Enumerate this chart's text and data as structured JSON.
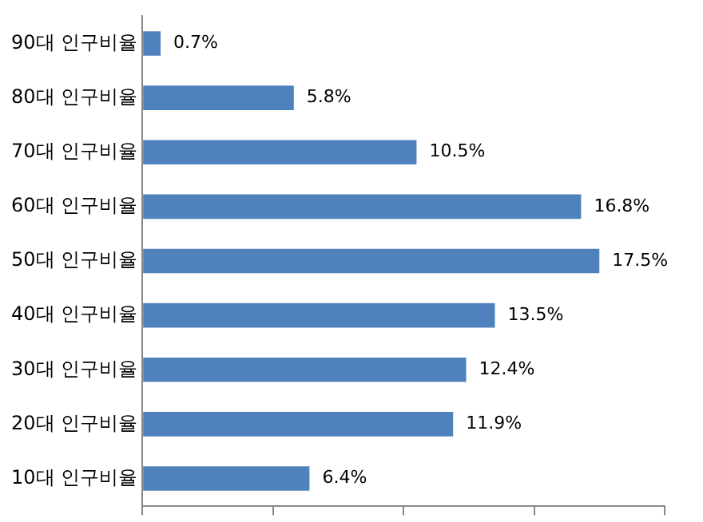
{
  "chart_data": {
    "type": "bar",
    "orientation": "horizontal",
    "categories": [
      "90대 인구비율",
      "80대 인구비율",
      "70대 인구비율",
      "60대 인구비율",
      "50대 인구비율",
      "40대 인구비율",
      "30대 인구비율",
      "20대 인구비율",
      "10대 인구비율"
    ],
    "values": [
      0.7,
      5.8,
      10.5,
      16.8,
      17.5,
      13.5,
      12.4,
      11.9,
      6.4
    ],
    "value_labels": [
      "0.7%",
      "5.8%",
      "10.5%",
      "16.8%",
      "17.5%",
      "13.5%",
      "12.4%",
      "11.9%",
      "6.4%"
    ],
    "color": "#4f81bd",
    "data_labels": false,
    "tick_labels": "y",
    "grid": false,
    "legend": false
  }
}
